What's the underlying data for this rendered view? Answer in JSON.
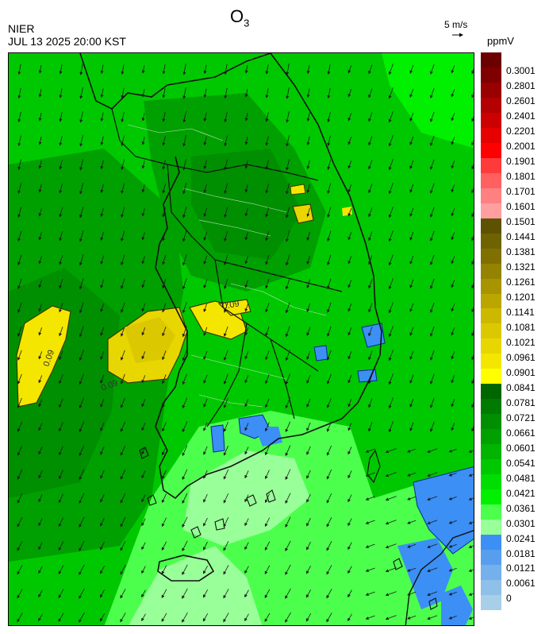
{
  "header": {
    "org": "NIER",
    "time": "JUL 13 2025 20:00 KST",
    "title_main": "O",
    "title_sub": "3",
    "scale_label": "5 m/s",
    "unit": "ppmV"
  },
  "legend": {
    "labels": [
      "0.3001",
      "0.2801",
      "0.2601",
      "0.2401",
      "0.2201",
      "0.2001",
      "0.1901",
      "0.1801",
      "0.1701",
      "0.1601",
      "0.1501",
      "0.1441",
      "0.1381",
      "0.1321",
      "0.1261",
      "0.1201",
      "0.1141",
      "0.1081",
      "0.1021",
      "0.0961",
      "0.0901",
      "0.0841",
      "0.0781",
      "0.0721",
      "0.0661",
      "0.0601",
      "0.0541",
      "0.0481",
      "0.0421",
      "0.0361",
      "0.0301",
      "0.0241",
      "0.0181",
      "0.0121",
      "0.0061",
      "0"
    ],
    "colors": [
      "#6b0000",
      "#7f0000",
      "#990000",
      "#b30000",
      "#cc0000",
      "#e60000",
      "#ff0000",
      "#ff3a3a",
      "#ff6060",
      "#ff8080",
      "#ff9f9f",
      "#5c5200",
      "#6f6200",
      "#807000",
      "#948300",
      "#a89400",
      "#bba600",
      "#cdb800",
      "#dcc800",
      "#e8d600",
      "#f5e600",
      "#ffff00",
      "#006600",
      "#007a00",
      "#008f00",
      "#00a000",
      "#00b400",
      "#00c800",
      "#00dd00",
      "#00f000",
      "#4dff4d",
      "#99ff99",
      "#3b8ff5",
      "#579fee",
      "#74b0ec",
      "#8fc0ea",
      "#a8cfe8"
    ]
  },
  "contour_labels": [
    "0.09",
    "0.09",
    "0.09"
  ]
}
